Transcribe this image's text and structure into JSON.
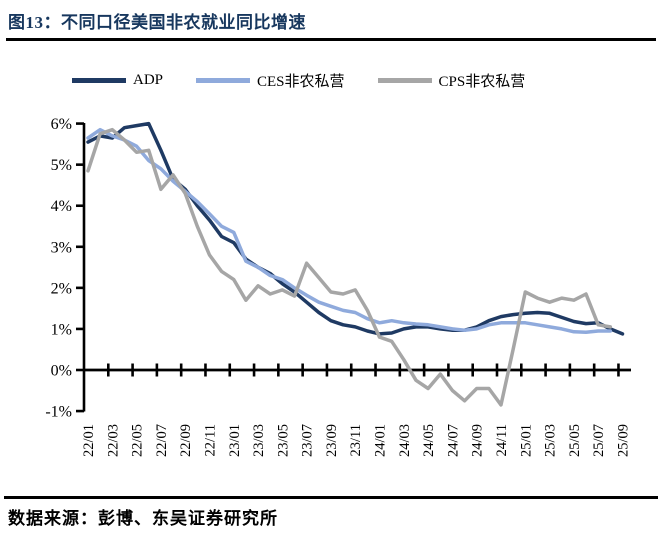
{
  "figure": {
    "title": "图13：不同口径美国非农就业同比增速",
    "source": "数据来源：彭博、东吴证券研究所"
  },
  "legend": [
    {
      "key": "adp",
      "label": "ADP",
      "color": "#1F3A63"
    },
    {
      "key": "ces",
      "label": "CES非农私营",
      "color": "#8FAADC"
    },
    {
      "key": "cps",
      "label": "CPS非农私营",
      "color": "#A6A6A6"
    }
  ],
  "chart_data": {
    "type": "line",
    "title": "不同口径美国非农就业同比增速",
    "xlabel": "",
    "ylabel": "",
    "ylim": [
      -1,
      6
    ],
    "grid": false,
    "legend_position": "top",
    "y_ticks": [
      "6%",
      "5%",
      "4%",
      "3%",
      "2%",
      "1%",
      "0%",
      "-1%"
    ],
    "x_tick_labels": [
      "22/01",
      "22/03",
      "22/05",
      "22/07",
      "22/09",
      "22/11",
      "23/01",
      "23/03",
      "23/05",
      "23/07",
      "23/09",
      "23/11",
      "24/01",
      "24/03",
      "24/05",
      "24/07",
      "24/09",
      "24/11",
      "25/01",
      "25/03",
      "25/05",
      "25/07",
      "25/09"
    ],
    "x": [
      "22/01",
      "22/02",
      "22/03",
      "22/04",
      "22/05",
      "22/06",
      "22/07",
      "22/08",
      "22/09",
      "22/10",
      "22/11",
      "22/12",
      "23/01",
      "23/02",
      "23/03",
      "23/04",
      "23/05",
      "23/06",
      "23/07",
      "23/08",
      "23/09",
      "23/10",
      "23/11",
      "23/12",
      "24/01",
      "24/02",
      "24/03",
      "24/04",
      "24/05",
      "24/06",
      "24/07",
      "24/08",
      "24/09",
      "24/10",
      "24/11",
      "24/12",
      "25/01",
      "25/02",
      "25/03",
      "25/04",
      "25/05",
      "25/06",
      "25/07",
      "25/08",
      "25/09"
    ],
    "unit": "%",
    "series": [
      {
        "key": "adp",
        "name": "ADP",
        "color": "#1F3A63",
        "values": [
          5.55,
          5.7,
          5.65,
          5.9,
          5.95,
          6.0,
          5.35,
          4.65,
          4.4,
          4.0,
          3.65,
          3.25,
          3.1,
          2.7,
          2.5,
          2.35,
          2.1,
          1.9,
          1.65,
          1.4,
          1.2,
          1.1,
          1.05,
          0.95,
          0.88,
          0.9,
          1.0,
          1.05,
          1.05,
          1.0,
          0.97,
          0.97,
          1.05,
          1.2,
          1.3,
          1.35,
          1.38,
          1.4,
          1.38,
          1.28,
          1.18,
          1.13,
          1.15,
          1.0,
          0.88
        ]
      },
      {
        "key": "ces",
        "name": "CES非农私营",
        "color": "#8FAADC",
        "values": [
          5.65,
          5.85,
          5.7,
          5.6,
          5.45,
          5.1,
          4.9,
          4.6,
          4.35,
          4.1,
          3.8,
          3.5,
          3.35,
          2.65,
          2.5,
          2.3,
          2.2,
          2.0,
          1.82,
          1.65,
          1.55,
          1.45,
          1.4,
          1.25,
          1.15,
          1.2,
          1.15,
          1.12,
          1.1,
          1.05,
          1.0,
          0.97,
          1.0,
          1.1,
          1.15,
          1.15,
          1.15,
          1.1,
          1.05,
          1.0,
          0.93,
          0.92,
          0.95,
          0.95,
          null
        ]
      },
      {
        "key": "cps",
        "name": "CPS非农私营",
        "color": "#A6A6A6",
        "values": [
          4.85,
          5.75,
          5.85,
          5.6,
          5.3,
          5.35,
          4.4,
          4.75,
          4.3,
          3.5,
          2.8,
          2.4,
          2.2,
          1.7,
          2.05,
          1.85,
          1.95,
          1.8,
          2.6,
          2.25,
          1.9,
          1.85,
          1.95,
          1.45,
          0.8,
          0.7,
          0.25,
          -0.25,
          -0.45,
          -0.1,
          -0.5,
          -0.75,
          -0.45,
          -0.45,
          -0.85,
          0.5,
          1.9,
          1.75,
          1.65,
          1.75,
          1.7,
          1.85,
          1.1,
          1.05,
          null
        ]
      }
    ]
  }
}
